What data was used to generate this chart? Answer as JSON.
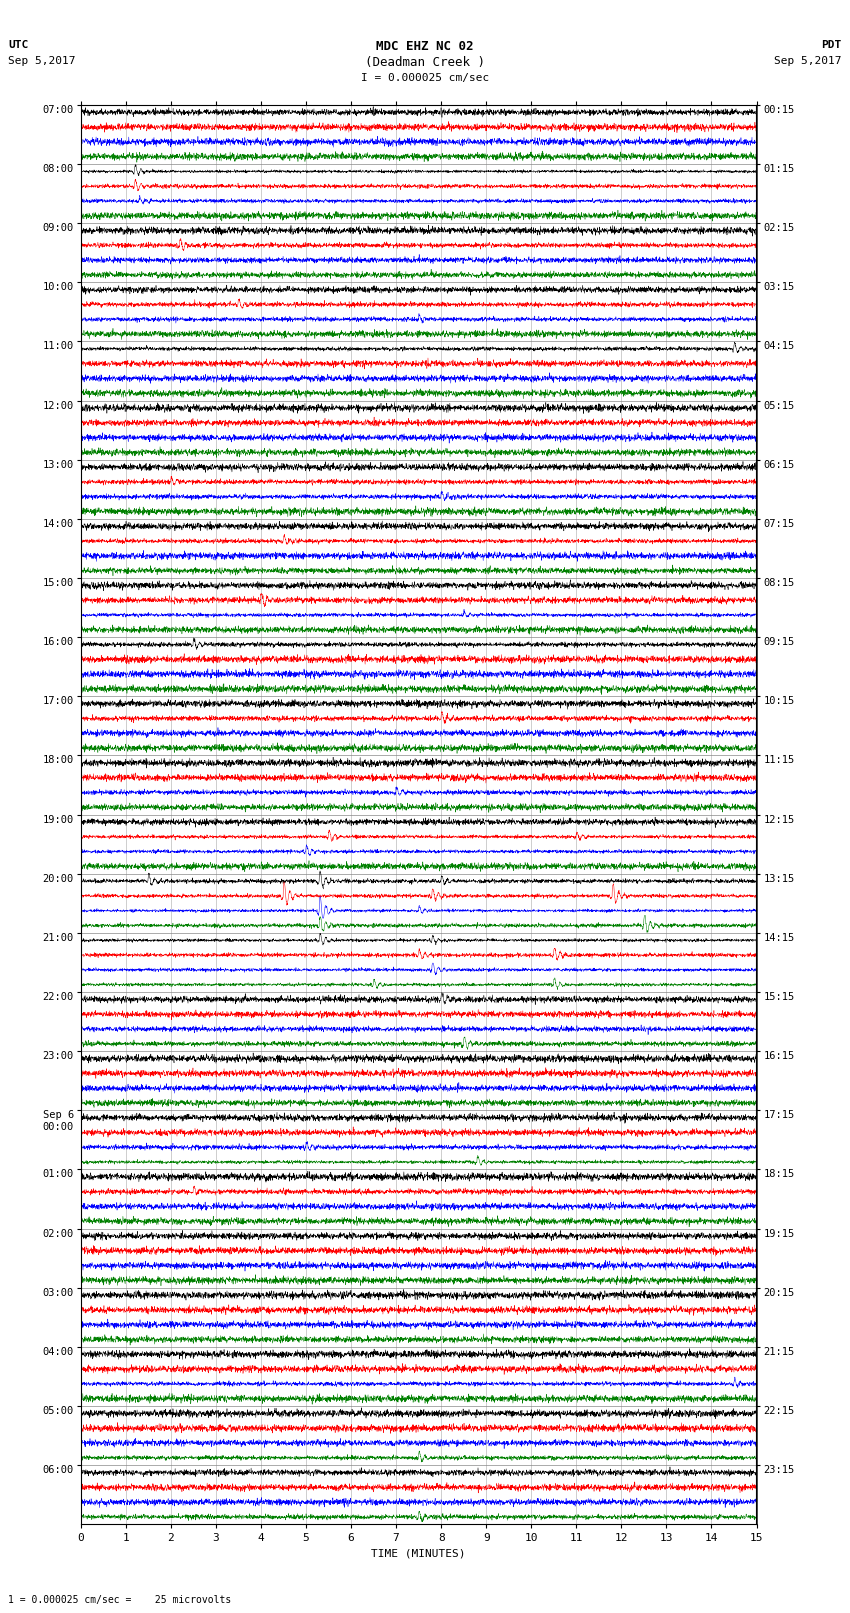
{
  "title_line1": "MDC EHZ NC 02",
  "title_line2": "(Deadman Creek )",
  "title_line3": "I = 0.000025 cm/sec",
  "left_label_line1": "UTC",
  "left_label_line2": "Sep 5,2017",
  "right_label_line1": "PDT",
  "right_label_line2": "Sep 5,2017",
  "bottom_label": "TIME (MINUTES)",
  "bottom_note": "1 = 0.000025 cm/sec =    25 microvolts",
  "utc_labels": [
    "07:00",
    "08:00",
    "09:00",
    "10:00",
    "11:00",
    "12:00",
    "13:00",
    "14:00",
    "15:00",
    "16:00",
    "17:00",
    "18:00",
    "19:00",
    "20:00",
    "21:00",
    "22:00",
    "23:00",
    "Sep 6\n00:00",
    "01:00",
    "02:00",
    "03:00",
    "04:00",
    "05:00",
    "06:00"
  ],
  "pdt_labels": [
    "00:15",
    "01:15",
    "02:15",
    "03:15",
    "04:15",
    "05:15",
    "06:15",
    "07:15",
    "08:15",
    "09:15",
    "10:15",
    "11:15",
    "12:15",
    "13:15",
    "14:15",
    "15:15",
    "16:15",
    "17:15",
    "18:15",
    "19:15",
    "20:15",
    "21:15",
    "22:15",
    "23:15"
  ],
  "colors": [
    "black",
    "red",
    "blue",
    "green"
  ],
  "num_hours": 24,
  "traces_per_hour": 4,
  "num_rows": 96,
  "noise_amp": 0.3,
  "bg_color": "#ffffff"
}
